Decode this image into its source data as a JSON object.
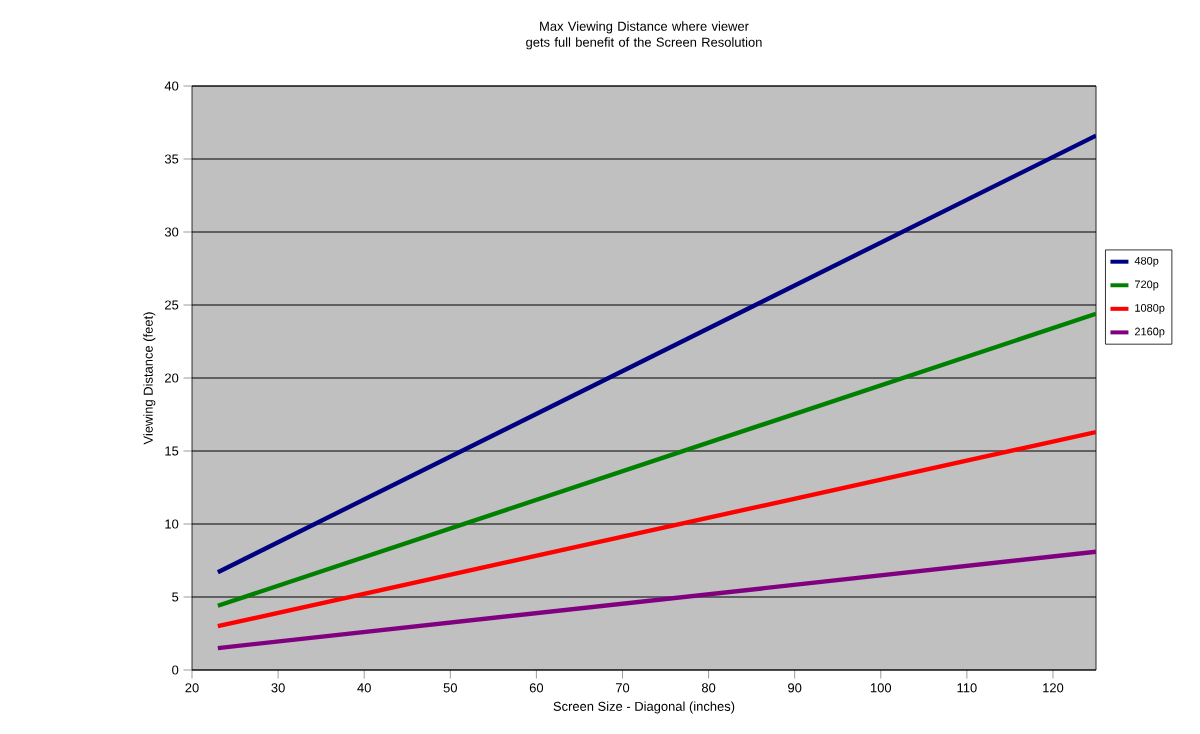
{
  "chart_data": {
    "type": "line",
    "title": "Max Viewing Distance where viewer gets full benefit of the Screen Resolution",
    "xlabel": "Screen Size - Diagonal (inches)",
    "ylabel": "Viewing Distance (feet)",
    "x": [
      23,
      125
    ],
    "series": [
      {
        "name": "480p",
        "color": "#000080",
        "values": [
          6.7,
          36.6
        ]
      },
      {
        "name": "720p",
        "color": "#008000",
        "values": [
          4.4,
          24.4
        ]
      },
      {
        "name": "1080p",
        "color": "#ff0000",
        "values": [
          3.0,
          16.3
        ]
      },
      {
        "name": "2160p",
        "color": "#800080",
        "values": [
          1.5,
          8.1
        ]
      }
    ],
    "xlim": [
      20,
      125
    ],
    "ylim": [
      0,
      40
    ],
    "xticks": [
      20,
      30,
      40,
      50,
      60,
      70,
      80,
      90,
      100,
      110,
      120
    ],
    "yticks": [
      0,
      5,
      10,
      15,
      20,
      25,
      30,
      35,
      40
    ],
    "grid": "y",
    "legend": "right",
    "marker": "none",
    "line_style": "solid"
  }
}
